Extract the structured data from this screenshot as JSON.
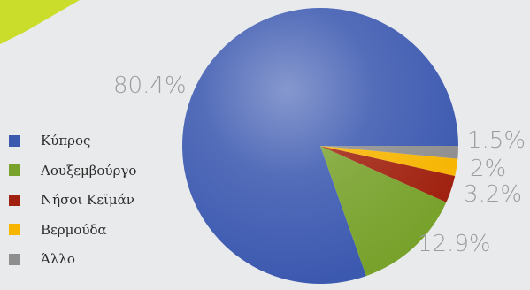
{
  "chart_data": {
    "type": "pie",
    "slices": [
      {
        "label": "Κύπρος",
        "value": 80.4,
        "display": "80.4%",
        "color": "#3c59b0"
      },
      {
        "label": "Λουξεμβούργο",
        "value": 12.9,
        "display": "12.9%",
        "color": "#78a22c"
      },
      {
        "label": "Νήσοι Κεϊμάν",
        "value": 3.2,
        "display": "3.2%",
        "color": "#a0210f"
      },
      {
        "label": "Βερμούδα",
        "value": 2,
        "display": "2%",
        "color": "#f7b500"
      },
      {
        "label": "Άλλο",
        "value": 1.5,
        "display": "1.5%",
        "color": "#8e8e8e"
      }
    ],
    "legend_position": "left"
  },
  "colors": {
    "background": "#e9eaeb",
    "accent": "#c9dd2a"
  }
}
